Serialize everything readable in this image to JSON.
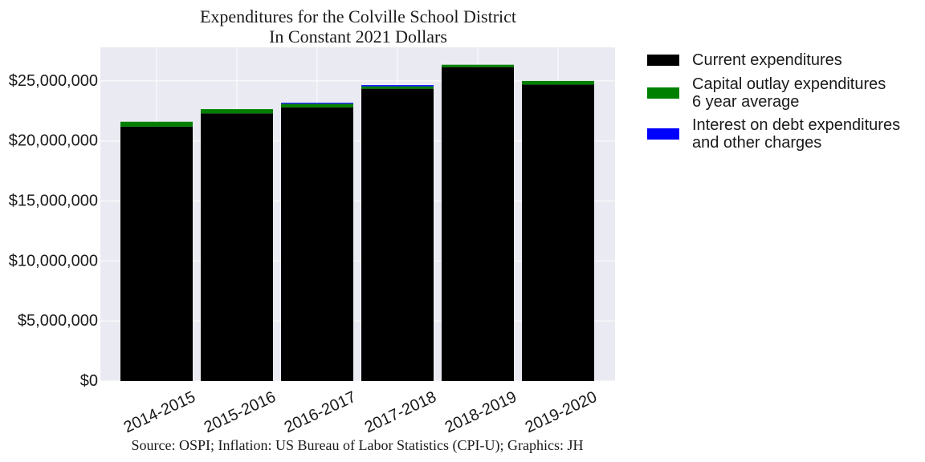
{
  "chart_data": {
    "type": "bar",
    "stacked": true,
    "title_lines": [
      "Expenditures for the Colville School District",
      "In Constant 2021 Dollars"
    ],
    "source": "Source: OSPI; Inflation: US Bureau of Labor Statistics (CPI-U); Graphics: JH",
    "categories": [
      "2014-2015",
      "2015-2016",
      "2016-2017",
      "2017-2018",
      "2018-2019",
      "2019-2020"
    ],
    "series": [
      {
        "name_lines": [
          "Current expenditures"
        ],
        "color": "#000000",
        "values": [
          21200000,
          22300000,
          22800000,
          24350000,
          26150000,
          24700000
        ]
      },
      {
        "name_lines": [
          "Capital outlay expenditures",
          "6 year average"
        ],
        "color": "#008000",
        "values": [
          400000,
          350000,
          300000,
          200000,
          200000,
          300000
        ]
      },
      {
        "name_lines": [
          "Interest on debt expenditures",
          "and other charges"
        ],
        "color": "#0000ff",
        "values": [
          0,
          0,
          80000,
          100000,
          0,
          0
        ]
      }
    ],
    "ylim": [
      0,
      27800000
    ],
    "yticks": [
      0,
      5000000,
      10000000,
      15000000,
      20000000,
      25000000
    ],
    "ytick_labels": [
      "$0",
      "$5,000,000",
      "$10,000,000",
      "$15,000,000",
      "$20,000,000",
      "$25,000,000"
    ],
    "grid": true,
    "legend_position": "outside-right"
  }
}
